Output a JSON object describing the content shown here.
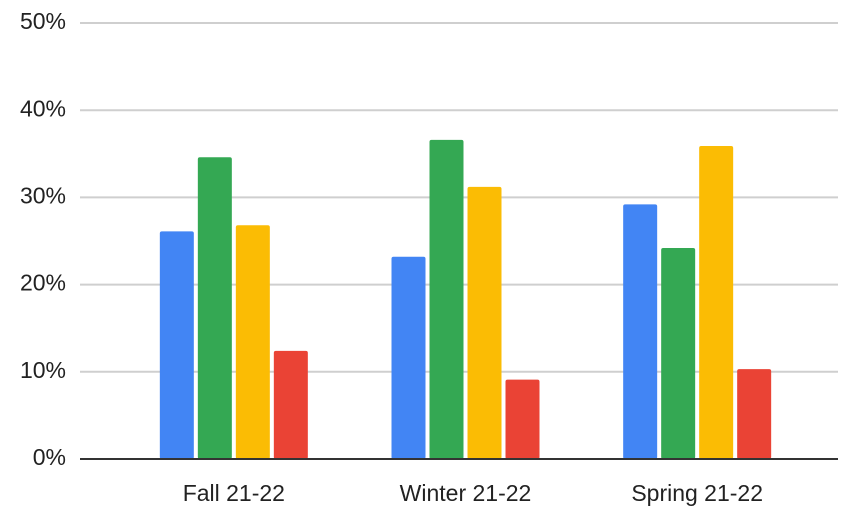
{
  "chart_data": {
    "type": "bar",
    "categories": [
      "Fall 21-22",
      "Winter 21-22",
      "Spring 21-22"
    ],
    "series": [
      {
        "color": "#4285f4",
        "values": [
          26.1,
          23.2,
          29.2
        ]
      },
      {
        "color": "#34a853",
        "values": [
          34.6,
          36.6,
          24.2
        ]
      },
      {
        "color": "#fbbc04",
        "values": [
          26.8,
          31.2,
          35.9
        ]
      },
      {
        "color": "#ea4335",
        "values": [
          12.4,
          9.1,
          10.3
        ]
      }
    ],
    "ylim": [
      0,
      50
    ],
    "yticks": [
      {
        "value": 0,
        "label": "0%"
      },
      {
        "value": 10,
        "label": "10%"
      },
      {
        "value": 20,
        "label": "20%"
      },
      {
        "value": 30,
        "label": "30%"
      },
      {
        "value": 40,
        "label": "40%"
      },
      {
        "value": 50,
        "label": "50%"
      }
    ],
    "grid": true
  }
}
